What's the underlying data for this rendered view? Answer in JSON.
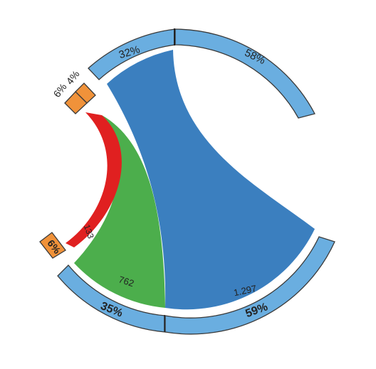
{
  "colors": {
    "segment_blue": "#6aaee0",
    "segment_orange": "#f0923a",
    "ribbon_blue": "#3b7fbf",
    "ribbon_green": "#4cae4c",
    "ribbon_red": "#e02020"
  },
  "top_group": {
    "segments": [
      {
        "label": "32%",
        "color": "#6aaee0"
      },
      {
        "label": "58%",
        "color": "#6aaee0"
      }
    ],
    "small_segments": [
      {
        "label": "4%",
        "color": "#f0923a"
      },
      {
        "label": "6%",
        "color": "#f0923a"
      }
    ]
  },
  "bottom_group": {
    "segments": [
      {
        "label": "35%",
        "color": "#6aaee0"
      },
      {
        "label": "59%",
        "color": "#6aaee0"
      }
    ],
    "small_segments": [
      {
        "label": "6%",
        "color": "#f0923a"
      }
    ]
  },
  "flows": [
    {
      "value": "1.297",
      "color": "#3b7fbf"
    },
    {
      "value": "762",
      "color": "#4cae4c"
    },
    {
      "value": "133",
      "color": "#e02020"
    }
  ]
}
